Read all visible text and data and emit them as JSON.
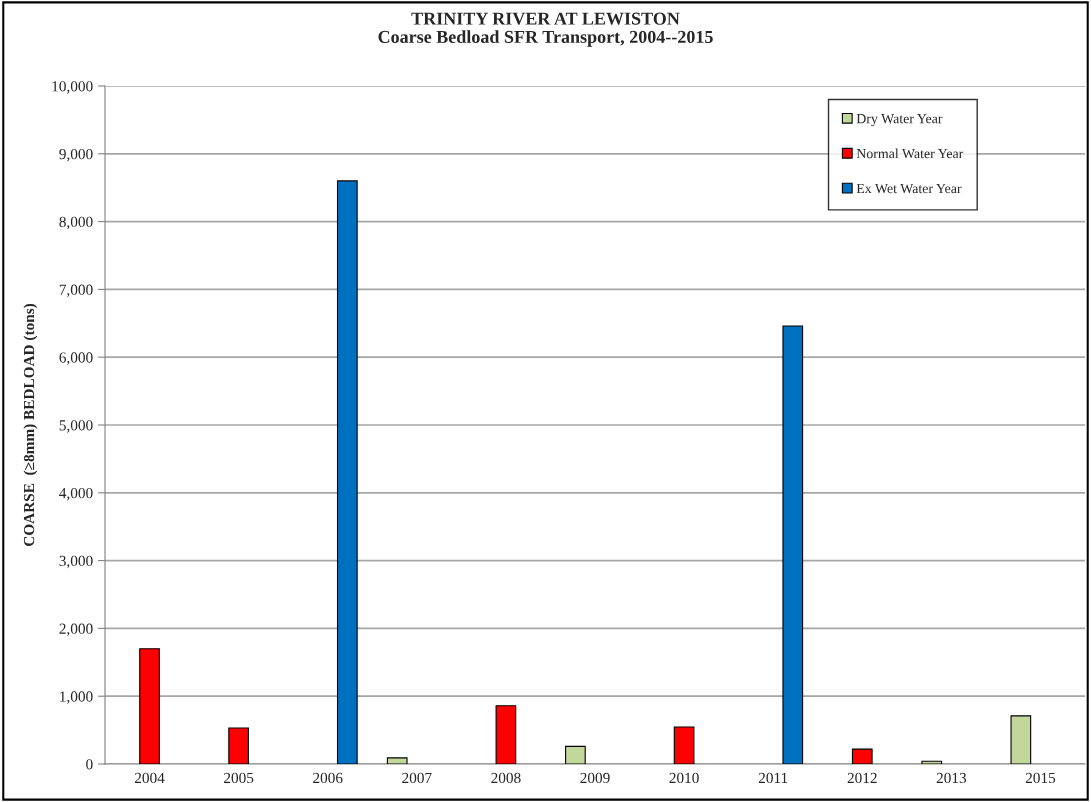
{
  "chart_data": {
    "type": "bar",
    "title": "TRINITY RIVER AT LEWISTON\nCoarse Bedload SFR Transport, 2004--2015",
    "ylabel": "COARSE  (≥8mm) BEDLOAD (tons)",
    "categories": [
      "2004",
      "2005",
      "2006",
      "2007",
      "2008",
      "2009",
      "2010",
      "2011",
      "2012",
      "2013",
      "2015"
    ],
    "series": [
      {
        "name": "Dry Water Year",
        "color": "#c3d69b",
        "values": [
          null,
          null,
          null,
          90,
          null,
          260,
          null,
          null,
          null,
          40,
          710
        ]
      },
      {
        "name": "Normal Water Year",
        "color": "#ff0000",
        "values": [
          1700,
          530,
          null,
          null,
          860,
          null,
          545,
          null,
          220,
          null,
          null
        ]
      },
      {
        "name": "Ex Wet Water Year",
        "color": "#0070c0",
        "values": [
          null,
          null,
          8600,
          null,
          null,
          null,
          null,
          6460,
          null,
          null,
          null
        ]
      }
    ],
    "ylim": [
      0,
      10000
    ],
    "yticks": [
      {
        "value": 0,
        "label": "0"
      },
      {
        "value": 1000,
        "label": "1,000"
      },
      {
        "value": 2000,
        "label": "2,000"
      },
      {
        "value": 3000,
        "label": "3,000"
      },
      {
        "value": 4000,
        "label": "4,000"
      },
      {
        "value": 5000,
        "label": "5,000"
      },
      {
        "value": 6000,
        "label": "6,000"
      },
      {
        "value": 7000,
        "label": "7,000"
      },
      {
        "value": 8000,
        "label": "8,000"
      },
      {
        "value": 9000,
        "label": "9,000"
      },
      {
        "value": 10000,
        "label": "10,000"
      }
    ],
    "grid": "y",
    "legend": "top right"
  }
}
